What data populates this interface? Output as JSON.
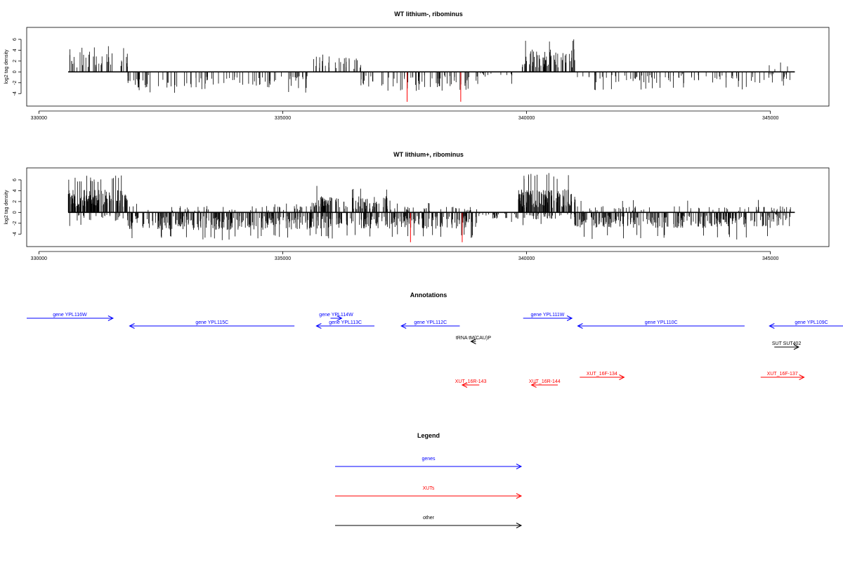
{
  "chart_data": [
    {
      "type": "bar",
      "title": "WT lithium-, ribominus",
      "ylabel": "log2 tag density",
      "xlabel": "",
      "xlim": [
        329750,
        346200
      ],
      "ylim": [
        -6.3,
        8.2
      ],
      "x_ticks": [
        330000,
        335000,
        340000,
        345000
      ],
      "x_tick_labels": [
        "330000",
        "335000",
        "340000",
        "345000"
      ],
      "y_ticks": [
        -4,
        -2,
        0,
        2,
        4,
        6
      ],
      "y_tick_labels": [
        "-4",
        "-2",
        "0",
        "2",
        "4",
        "6"
      ],
      "baseline_range": [
        330600,
        345500
      ],
      "segments": [
        {
          "from": 330600,
          "to": 331820,
          "strand": "+",
          "level": 2.9,
          "peak": 4.9,
          "density": 40
        },
        {
          "from": 331820,
          "to": 335550,
          "strand": "-",
          "level": 2.3,
          "peak": 3.9,
          "density": 95
        },
        {
          "from": 335600,
          "to": 336600,
          "strand": "+",
          "level": 2.2,
          "peak": 3.8,
          "density": 30
        },
        {
          "from": 336600,
          "to": 339000,
          "strand": "-",
          "level": 2.2,
          "peak": 3.7,
          "density": 70
        },
        {
          "from": 339000,
          "to": 339700,
          "strand": "-",
          "level": 0.8,
          "peak": 2.2,
          "density": 12
        },
        {
          "from": 339900,
          "to": 341000,
          "strand": "+",
          "level": 3.2,
          "peak": 6.7,
          "density": 70
        },
        {
          "from": 341000,
          "to": 345000,
          "strand": "-",
          "level": 1.6,
          "peak": 3.4,
          "density": 85
        },
        {
          "from": 344950,
          "to": 345450,
          "strand": "+",
          "level": 1.4,
          "peak": 3.0,
          "density": 4
        },
        {
          "from": 345000,
          "to": 345450,
          "strand": "-",
          "level": 1.6,
          "peak": 2.8,
          "density": 12
        }
      ],
      "highlights": [
        {
          "x": 337550,
          "value": -5.5,
          "color": "#ff0000"
        },
        {
          "x": 338650,
          "value": -5.5,
          "color": "#ff0000"
        }
      ]
    },
    {
      "type": "bar",
      "title": "WT lithium+, ribominus",
      "ylabel": "log2 tag density",
      "xlabel": "",
      "xlim": [
        329750,
        346200
      ],
      "ylim": [
        -6.3,
        8.2
      ],
      "x_ticks": [
        330000,
        335000,
        340000,
        345000
      ],
      "x_tick_labels": [
        "330000",
        "335000",
        "340000",
        "345000"
      ],
      "y_ticks": [
        -4,
        -2,
        0,
        2,
        4,
        6
      ],
      "y_tick_labels": [
        "-4",
        "-2",
        "0",
        "2",
        "4",
        "6"
      ],
      "baseline_range": [
        330600,
        345500
      ],
      "segments": [
        {
          "from": 330600,
          "to": 331820,
          "strand": "+",
          "level": 3.2,
          "peak": 6.8,
          "density": 170
        },
        {
          "from": 330600,
          "to": 331820,
          "strand": "-",
          "level": 1.2,
          "peak": 2.5,
          "density": 25
        },
        {
          "from": 331820,
          "to": 335600,
          "strand": "+",
          "level": 0.9,
          "peak": 1.8,
          "density": 50
        },
        {
          "from": 331820,
          "to": 335600,
          "strand": "-",
          "level": 2.5,
          "peak": 5.2,
          "density": 260
        },
        {
          "from": 335600,
          "to": 337200,
          "strand": "+",
          "level": 2.3,
          "peak": 5.2,
          "density": 100
        },
        {
          "from": 335600,
          "to": 339000,
          "strand": "-",
          "level": 2.3,
          "peak": 5.0,
          "density": 220
        },
        {
          "from": 337200,
          "to": 339000,
          "strand": "+",
          "level": 0.8,
          "peak": 2.0,
          "density": 35
        },
        {
          "from": 339000,
          "to": 339800,
          "strand": "-",
          "level": 0.9,
          "peak": 2.0,
          "density": 25
        },
        {
          "from": 339800,
          "to": 341000,
          "strand": "+",
          "level": 3.3,
          "peak": 7.3,
          "density": 160
        },
        {
          "from": 339800,
          "to": 341000,
          "strand": "-",
          "level": 1.0,
          "peak": 2.5,
          "density": 40
        },
        {
          "from": 341000,
          "to": 345000,
          "strand": "-",
          "level": 2.2,
          "peak": 5.0,
          "density": 250
        },
        {
          "from": 341000,
          "to": 345000,
          "strand": "+",
          "level": 0.9,
          "peak": 2.3,
          "density": 50
        },
        {
          "from": 345000,
          "to": 345450,
          "strand": "+",
          "level": 1.0,
          "peak": 1.8,
          "density": 12
        },
        {
          "from": 345000,
          "to": 345450,
          "strand": "-",
          "level": 1.4,
          "peak": 2.6,
          "density": 20
        }
      ],
      "highlights": [
        {
          "x": 337620,
          "value": -5.5,
          "color": "#ff0000"
        },
        {
          "x": 338680,
          "value": -5.5,
          "color": "#ff0000"
        }
      ]
    }
  ],
  "annotations": {
    "title": "Annotations",
    "items": [
      {
        "label": "gene YPL116W",
        "start": 329750,
        "end": 331520,
        "row": 0,
        "category": "genes"
      },
      {
        "label": "gene YPL115C",
        "start": 335240,
        "end": 331860,
        "row": 1,
        "category": "genes"
      },
      {
        "label": "gene YPL114W",
        "start": 335980,
        "end": 336210,
        "row": 0,
        "category": "genes"
      },
      {
        "label": "gene YPL113C",
        "start": 336880,
        "end": 335690,
        "row": 1,
        "category": "genes"
      },
      {
        "label": "gene YPL112C",
        "start": 338630,
        "end": 337430,
        "row": 1,
        "category": "genes"
      },
      {
        "label": "gene YPL111W",
        "start": 339930,
        "end": 340930,
        "row": 0,
        "category": "genes"
      },
      {
        "label": "gene YPL110C",
        "start": 344470,
        "end": 341050,
        "row": 1,
        "category": "genes"
      },
      {
        "label": "gene YPL109C",
        "start": 346700,
        "end": 344980,
        "row": 1,
        "category": "genes"
      },
      {
        "label": "tRNA tM(CAU)P",
        "start": 338960,
        "end": 338860,
        "row": 2,
        "category": "other"
      },
      {
        "label": "SUT SUT402",
        "start": 345080,
        "end": 345580,
        "row": 3,
        "category": "other"
      },
      {
        "label": "XUT_16F-134",
        "start": 341090,
        "end": 342000,
        "row": 4,
        "category": "XUTs"
      },
      {
        "label": "XUT_16F-137",
        "start": 344800,
        "end": 345690,
        "row": 4,
        "category": "XUTs"
      },
      {
        "label": "XUT_16R-143",
        "start": 339030,
        "end": 338680,
        "row": 5,
        "category": "XUTs"
      },
      {
        "label": "XUT_16R-144",
        "start": 340640,
        "end": 340100,
        "row": 5,
        "category": "XUTs"
      }
    ]
  },
  "legend": {
    "title": "Legend",
    "entries": [
      {
        "label": "genes",
        "color": "#0000ff"
      },
      {
        "label": "XUTs",
        "color": "#ff0000"
      },
      {
        "label": "other",
        "color": "#000000"
      }
    ]
  },
  "colors": {
    "genes": "#0000ff",
    "XUTs": "#ff0000",
    "other": "#000000"
  }
}
